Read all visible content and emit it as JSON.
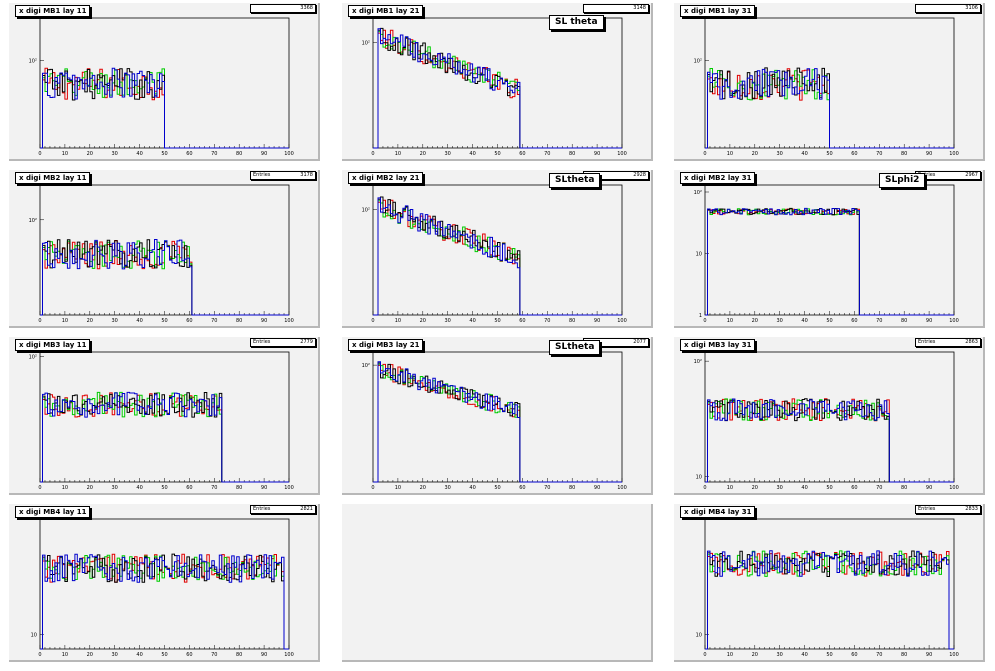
{
  "x_tick_labels": [
    "0",
    "10",
    "20",
    "30",
    "40",
    "50",
    "60",
    "70",
    "80",
    "90",
    "100"
  ],
  "colors": {
    "red": "#e00000",
    "green": "#00cc00",
    "blue": "#0000cc",
    "black": "#000000"
  },
  "panels": [
    {
      "title": "x digi MB1 lay 11",
      "stat_key": "",
      "stat_value": "3368",
      "overlay": "",
      "yscale": "log",
      "ylabels": [
        {
          "v": 100,
          "t": "10²"
        }
      ],
      "ylim": [
        15,
        250
      ],
      "profile": {
        "type": "flat",
        "start": 1,
        "end": 50,
        "level": 60,
        "noise": 0.35
      }
    },
    {
      "title": "x digi MB1 lay 21",
      "stat_key": "",
      "stat_value": "3148",
      "overlay": "SL theta",
      "yscale": "log",
      "ylabels": [
        {
          "v": 100,
          "t": "10²"
        }
      ],
      "ylim": [
        5,
        200
      ],
      "profile": {
        "type": "decay",
        "start": 2,
        "end": 59,
        "level": 120,
        "endlevel": 25,
        "noise": 0.3
      }
    },
    {
      "title": "x digi MB1 lay 31",
      "stat_key": "",
      "stat_value": "3106",
      "overlay": "",
      "yscale": "log",
      "ylabels": [
        {
          "v": 100,
          "t": "10²"
        }
      ],
      "ylim": [
        15,
        250
      ],
      "profile": {
        "type": "flat",
        "start": 1,
        "end": 50,
        "level": 60,
        "noise": 0.35
      }
    },
    {
      "title": "x digi MB2 lay 11",
      "stat_key": "Entries",
      "stat_value": "3178",
      "overlay": "",
      "yscale": "log",
      "ylabels": [
        {
          "v": 100,
          "t": "10²"
        }
      ],
      "ylim": [
        15,
        200
      ],
      "profile": {
        "type": "flat",
        "start": 1,
        "end": 61,
        "level": 50,
        "noise": 0.3
      }
    },
    {
      "title": "x digi MB2 lay 21",
      "stat_key": "",
      "stat_value": "2928",
      "overlay": "SLtheta",
      "yscale": "log",
      "ylabels": [
        {
          "v": 100,
          "t": "10²"
        }
      ],
      "ylim": [
        5,
        200
      ],
      "profile": {
        "type": "decay",
        "start": 2,
        "end": 59,
        "level": 110,
        "endlevel": 25,
        "noise": 0.3
      }
    },
    {
      "title": "x digi MB2 lay 31",
      "stat_key": "Entries",
      "stat_value": "2967",
      "overlay": "SLphi2",
      "yscale": "log",
      "ylabels": [
        {
          "v": 100,
          "t": "10²"
        },
        {
          "v": 10,
          "t": "10"
        },
        {
          "v": 1,
          "t": "1"
        }
      ],
      "ylim": [
        1,
        130
      ],
      "profile": {
        "type": "flat",
        "start": 1,
        "end": 62,
        "level": 48,
        "noise": 0.12
      }
    },
    {
      "title": "x digi MB3 lay 11",
      "stat_key": "Entries",
      "stat_value": "2779",
      "overlay": "",
      "yscale": "log",
      "ylabels": [
        {
          "v": 100,
          "t": "10²"
        }
      ],
      "ylim": [
        8,
        110
      ],
      "profile": {
        "type": "flat",
        "start": 1,
        "end": 73,
        "level": 38,
        "noise": 0.25
      }
    },
    {
      "title": "x digi MB3 lay 21",
      "stat_key": "",
      "stat_value": "2077",
      "overlay": "SLtheta",
      "yscale": "log",
      "ylabels": [
        {
          "v": 100,
          "t": "10²"
        }
      ],
      "ylim": [
        5,
        140
      ],
      "profile": {
        "type": "decay",
        "start": 2,
        "end": 59,
        "level": 90,
        "endlevel": 30,
        "noise": 0.22
      }
    },
    {
      "title": "x digi MB3 lay 31",
      "stat_key": "Entries",
      "stat_value": "2863",
      "overlay": "",
      "yscale": "log",
      "ylabels": [
        {
          "v": 100,
          "t": "10²"
        },
        {
          "v": 10,
          "t": "10"
        }
      ],
      "ylim": [
        9,
        120
      ],
      "profile": {
        "type": "flat",
        "start": 1,
        "end": 74,
        "level": 38,
        "noise": 0.22
      }
    },
    {
      "title": "x digi MB4 lay 11",
      "stat_key": "Entries",
      "stat_value": "2821",
      "overlay": "",
      "yscale": "log",
      "ylabels": [
        {
          "v": 10,
          "t": "10"
        }
      ],
      "ylim": [
        8,
        60
      ],
      "profile": {
        "type": "flat",
        "start": 1,
        "end": 98,
        "level": 28,
        "noise": 0.22
      }
    },
    {
      "title": "",
      "stat_key": "",
      "stat_value": "",
      "overlay": "",
      "empty": true
    },
    {
      "title": "x digi MB4 lay 31",
      "stat_key": "Entries",
      "stat_value": "2833",
      "overlay": "",
      "yscale": "log",
      "ylabels": [
        {
          "v": 10,
          "t": "10"
        }
      ],
      "ylim": [
        8,
        60
      ],
      "profile": {
        "type": "flat",
        "start": 1,
        "end": 98,
        "level": 30,
        "noise": 0.2
      }
    }
  ],
  "chart_data": {
    "type": "histogram-grid",
    "xlim": [
      0,
      100
    ],
    "series_colors": [
      "red",
      "green",
      "blue",
      "black"
    ]
  }
}
